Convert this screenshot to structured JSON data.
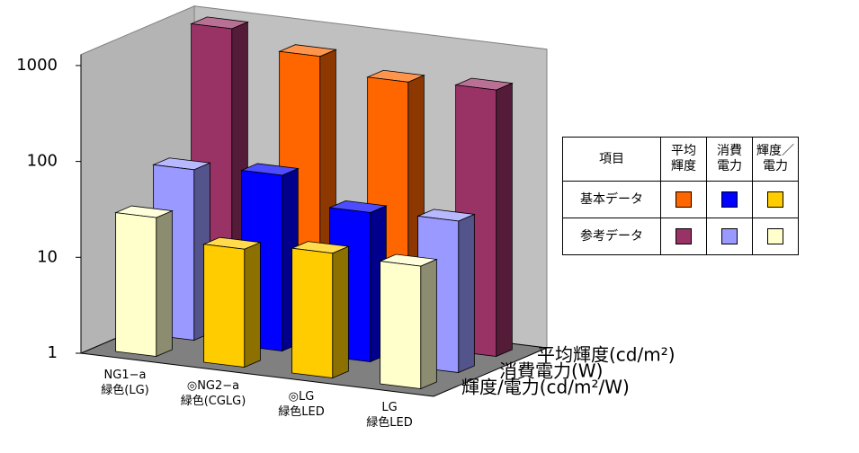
{
  "chart_data": {
    "type": "bar3d",
    "log": true,
    "grid": false,
    "categories": [
      "NG1−a\n緑色(LG)",
      "◎NG2−a\n緑色(CGLG)",
      "◎LG\n緑色LED",
      "LG\n緑色LED"
    ],
    "series": [
      {
        "name": "平均輝度(cd/m²)",
        "colors": [
          "#993366",
          "#ff6600",
          "#ff6600",
          "#993366"
        ],
        "values": [
          1200,
          800,
          560,
          600
        ]
      },
      {
        "name": "消費電力(W)",
        "colors": [
          "#9999ff",
          "#0000ff",
          "#0000ff",
          "#9999ff"
        ],
        "values": [
          60,
          68,
          36,
          38
        ]
      },
      {
        "name": "輝度/電力(cd/m²/W)",
        "colors": [
          "#ffffcc",
          "#ffcc00",
          "#ffcc00",
          "#ffffcc"
        ],
        "values": [
          28,
          17,
          20,
          19
        ]
      }
    ],
    "ylim": [
      1,
      1300
    ],
    "yticks": [
      1,
      10,
      100,
      1000
    ]
  },
  "legend_table": {
    "header": [
      "項目",
      "平均\n輝度",
      "消費\n電力",
      "輝度／\n電力"
    ],
    "rows": [
      {
        "label": "基本データ",
        "colors": [
          "#ff6600",
          "#0000ff",
          "#ffcc00"
        ]
      },
      {
        "label": "参考データ",
        "colors": [
          "#993366",
          "#9999ff",
          "#ffffcc"
        ]
      }
    ]
  }
}
